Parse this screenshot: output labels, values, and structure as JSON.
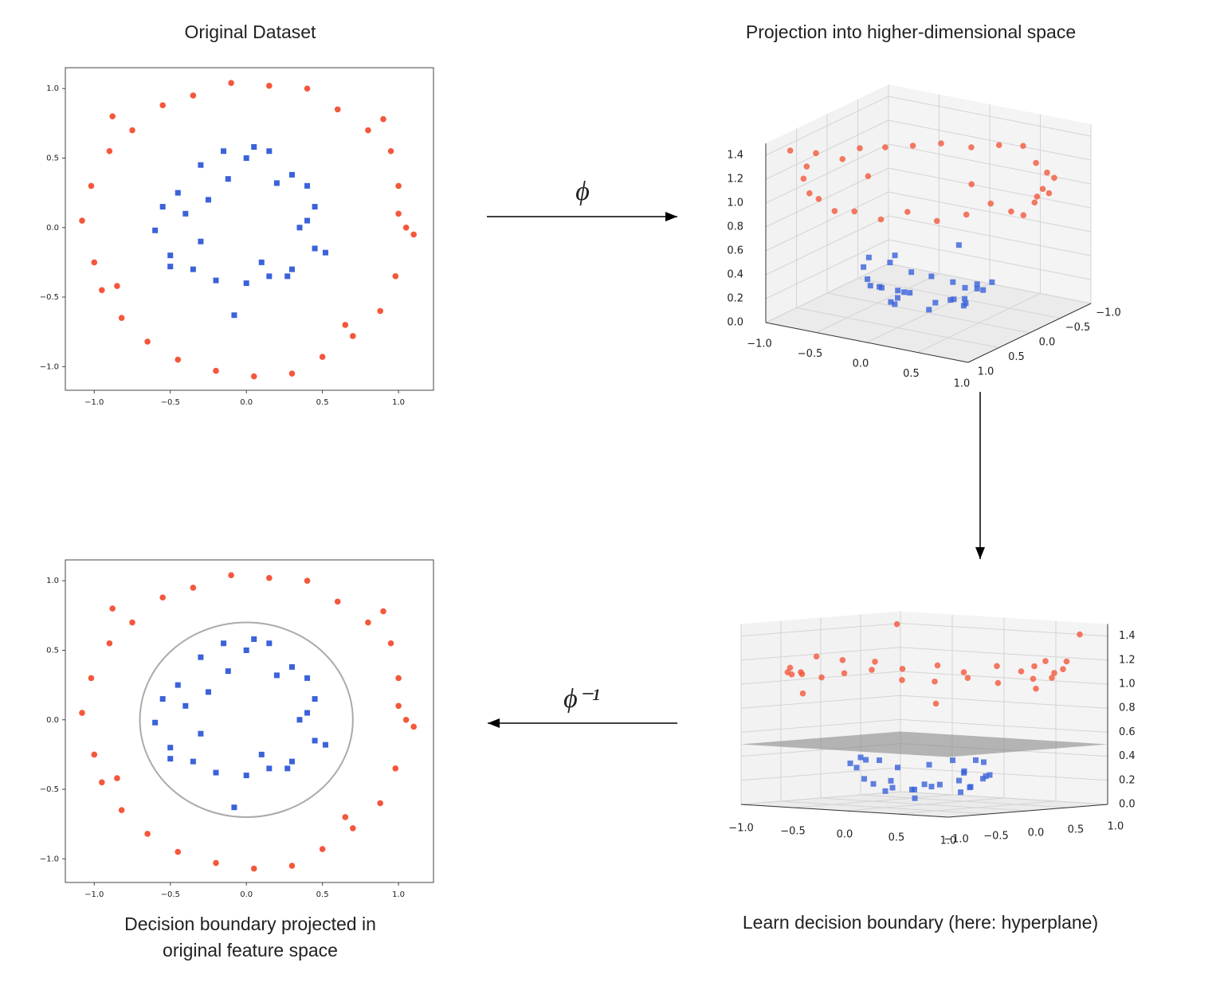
{
  "annotations": [
    "ϕ",
    "ϕ⁻¹"
  ],
  "chart_data": [
    {
      "type": "scatter",
      "title": "Original Dataset",
      "xlim": [
        -1.19,
        1.23
      ],
      "ylim": [
        -1.17,
        1.15
      ],
      "xticks": [
        {
          "value": -1,
          "label": "−1.0"
        },
        {
          "value": -0.5,
          "label": "−0.5"
        },
        {
          "value": 0,
          "label": "0.0"
        },
        {
          "value": 0.5,
          "label": "0.5"
        },
        {
          "value": 1,
          "label": "1.0"
        }
      ],
      "yticks": [
        {
          "value": -1,
          "label": "−1.0"
        },
        {
          "value": -0.5,
          "label": "−0.5"
        },
        {
          "value": 0,
          "label": "0.0"
        },
        {
          "value": 0.5,
          "label": "0.5"
        },
        {
          "value": 1,
          "label": "1.0"
        }
      ],
      "series": [
        {
          "color": "#f4573c",
          "marker": "circle",
          "x": [
            1.05,
            1.0,
            0.95,
            0.8,
            0.6,
            0.4,
            0.15,
            -0.1,
            -0.35,
            -0.55,
            -0.75,
            -0.9,
            -1.02,
            -1.08,
            -1.0,
            -0.95,
            -0.82,
            -0.65,
            -0.45,
            -0.2,
            0.05,
            0.3,
            0.5,
            0.7,
            0.88,
            0.98,
            1.1,
            1.0,
            -0.88,
            0.65,
            -0.85,
            0.9
          ],
          "values": [
            0.0,
            0.3,
            0.55,
            0.7,
            0.85,
            1.0,
            1.02,
            1.04,
            0.95,
            0.88,
            0.7,
            0.55,
            0.3,
            0.05,
            -0.25,
            -0.45,
            -0.65,
            -0.82,
            -0.95,
            -1.03,
            -1.07,
            -1.05,
            -0.93,
            -0.78,
            -0.6,
            -0.35,
            -0.05,
            0.1,
            0.8,
            -0.7,
            -0.42,
            0.78
          ]
        },
        {
          "color": "#3a62d9",
          "marker": "square",
          "x": [
            0.45,
            0.4,
            0.3,
            0.15,
            0.0,
            -0.15,
            -0.3,
            -0.45,
            -0.55,
            -0.6,
            -0.5,
            -0.35,
            -0.2,
            0.0,
            0.15,
            0.3,
            0.45,
            0.52,
            0.4,
            -0.08,
            -0.4,
            0.2,
            0.35,
            -0.25,
            0.1,
            -0.3,
            0.27,
            -0.12,
            0.05,
            -0.5
          ],
          "values": [
            0.15,
            0.3,
            0.38,
            0.55,
            0.5,
            0.55,
            0.45,
            0.25,
            0.15,
            -0.02,
            -0.2,
            -0.3,
            -0.38,
            -0.4,
            -0.35,
            -0.3,
            -0.15,
            -0.18,
            0.05,
            -0.63,
            0.1,
            0.32,
            0.0,
            0.2,
            -0.25,
            -0.1,
            -0.35,
            0.35,
            0.58,
            -0.28
          ]
        }
      ]
    },
    {
      "type": "scatter3d",
      "title": "Projection into higher-dimensional space",
      "xlim": [
        -1,
        1
      ],
      "ylim": [
        -1,
        1
      ],
      "zlim": [
        0,
        1.5
      ],
      "xticks": [
        {
          "value": -1,
          "label": "−1.0"
        },
        {
          "value": -0.5,
          "label": "−0.5"
        },
        {
          "value": 0,
          "label": "0.0"
        },
        {
          "value": 0.5,
          "label": "0.5"
        },
        {
          "value": 1,
          "label": "1.0"
        }
      ],
      "yticks": [
        {
          "value": -1,
          "label": "−1.0"
        },
        {
          "value": -0.5,
          "label": "−0.5"
        },
        {
          "value": 0,
          "label": "0.0"
        },
        {
          "value": 0.5,
          "label": "0.5"
        },
        {
          "value": 1,
          "label": "1.0"
        }
      ],
      "zticks": [
        {
          "value": 0,
          "label": "0.0"
        },
        {
          "value": 0.2,
          "label": "0.2"
        },
        {
          "value": 0.4,
          "label": "0.4"
        },
        {
          "value": 0.6,
          "label": "0.6"
        },
        {
          "value": 0.8,
          "label": "0.8"
        },
        {
          "value": 1,
          "label": "1.0"
        },
        {
          "value": 1.2,
          "label": "1.2"
        },
        {
          "value": 1.4,
          "label": "1.4"
        }
      ],
      "series": [
        {
          "color": "#f4573c",
          "marker": "circle",
          "x": [
            1.05,
            1.0,
            0.95,
            0.8,
            0.6,
            0.4,
            0.15,
            -0.1,
            -0.35,
            -0.55,
            -0.75,
            -0.9,
            -1.02,
            -1.08,
            -1.0,
            -0.95,
            -0.82,
            -0.65,
            -0.45,
            -0.2,
            0.05,
            0.3,
            0.5,
            0.7,
            0.88,
            0.98,
            1.1,
            1.0,
            -0.88,
            0.65,
            -0.85,
            0.9
          ],
          "y": [
            0.0,
            0.3,
            0.55,
            0.7,
            0.85,
            1.0,
            1.02,
            1.04,
            0.95,
            0.88,
            0.7,
            0.55,
            0.3,
            0.05,
            -0.25,
            -0.45,
            -0.65,
            -0.82,
            -0.95,
            -1.03,
            -1.07,
            -1.05,
            -0.93,
            -0.78,
            -0.6,
            -0.35,
            -0.05,
            0.1,
            0.8,
            -0.7,
            -0.42,
            0.78
          ],
          "z": [
            1.1,
            1.09,
            1.21,
            1.13,
            1.08,
            1.16,
            1.06,
            1.09,
            1.03,
            1.08,
            1.05,
            1.11,
            1.13,
            1.17,
            1.06,
            1.11,
            1.09,
            1.09,
            1.11,
            1.1,
            1.15,
            1.19,
            1.11,
            1.1,
            1.13,
            1.08,
            1.21,
            1.01,
            1.41,
            0.91,
            0.9,
            1.42
          ]
        },
        {
          "color": "#3a62d9",
          "marker": "square",
          "x": [
            0.45,
            0.4,
            0.3,
            0.15,
            0.0,
            -0.15,
            -0.3,
            -0.45,
            -0.55,
            -0.6,
            -0.5,
            -0.35,
            -0.2,
            0.0,
            0.15,
            0.3,
            0.45,
            0.52,
            0.4,
            -0.08,
            -0.4,
            0.2,
            0.35,
            -0.25,
            0.1,
            -0.3,
            0.27,
            -0.12,
            0.05,
            -0.5
          ],
          "y": [
            0.15,
            0.3,
            0.38,
            0.55,
            0.5,
            0.55,
            0.45,
            0.25,
            0.15,
            -0.02,
            -0.2,
            -0.3,
            -0.38,
            -0.4,
            -0.35,
            -0.3,
            -0.15,
            -0.18,
            0.05,
            -0.63,
            0.1,
            0.32,
            0.0,
            0.2,
            -0.25,
            -0.1,
            -0.35,
            0.35,
            0.58,
            -0.28
          ],
          "z": [
            0.23,
            0.25,
            0.23,
            0.33,
            0.25,
            0.33,
            0.29,
            0.27,
            0.33,
            0.36,
            0.29,
            0.21,
            0.18,
            0.16,
            0.15,
            0.18,
            0.23,
            0.3,
            0.16,
            0.4,
            0.17,
            0.14,
            0.12,
            0.1,
            0.07,
            0.1,
            0.2,
            0.14,
            0.34,
            0.33
          ]
        }
      ]
    },
    {
      "type": "scatter3d",
      "title": "Learn decision boundary (here: hyperplane)",
      "plane_z": 0.5,
      "xlim": [
        -1,
        1
      ],
      "ylim": [
        -1,
        1
      ],
      "zlim": [
        0,
        1.5
      ],
      "xticks": [
        {
          "value": -1,
          "label": "−1.0"
        },
        {
          "value": -0.5,
          "label": "−0.5"
        },
        {
          "value": 0,
          "label": "0.0"
        },
        {
          "value": 0.5,
          "label": "0.5"
        },
        {
          "value": 1,
          "label": "1.0"
        }
      ],
      "yticks": [
        {
          "value": -1,
          "label": "−1.0"
        },
        {
          "value": -0.5,
          "label": "−0.5"
        },
        {
          "value": 0,
          "label": "0.0"
        },
        {
          "value": 0.5,
          "label": "0.5"
        },
        {
          "value": 1,
          "label": "1.0"
        }
      ],
      "zticks": [
        {
          "value": 0,
          "label": "0.0"
        },
        {
          "value": 0.2,
          "label": "0.2"
        },
        {
          "value": 0.4,
          "label": "0.4"
        },
        {
          "value": 0.6,
          "label": "0.6"
        },
        {
          "value": 0.8,
          "label": "0.8"
        },
        {
          "value": 1,
          "label": "1.0"
        },
        {
          "value": 1.2,
          "label": "1.2"
        },
        {
          "value": 1.4,
          "label": "1.4"
        }
      ],
      "series": [
        {
          "color": "#f4573c",
          "marker": "circle",
          "x": [
            1.05,
            1.0,
            0.95,
            0.8,
            0.6,
            0.4,
            0.15,
            -0.1,
            -0.35,
            -0.55,
            -0.75,
            -0.9,
            -1.02,
            -1.08,
            -1.0,
            -0.95,
            -0.82,
            -0.65,
            -0.45,
            -0.2,
            0.05,
            0.3,
            0.5,
            0.7,
            0.88,
            0.98,
            1.1,
            1.0,
            -0.88,
            0.65,
            -0.85,
            0.9
          ],
          "y": [
            0.0,
            0.3,
            0.55,
            0.7,
            0.85,
            1.0,
            1.02,
            1.04,
            0.95,
            0.88,
            0.7,
            0.55,
            0.3,
            0.05,
            -0.25,
            -0.45,
            -0.65,
            -0.82,
            -0.95,
            -1.03,
            -1.07,
            -1.05,
            -0.93,
            -0.78,
            -0.6,
            -0.35,
            -0.05,
            0.1,
            0.8,
            -0.7,
            -0.42,
            0.78
          ],
          "z": [
            1.1,
            1.09,
            1.21,
            1.13,
            1.08,
            1.16,
            1.06,
            1.09,
            1.03,
            1.08,
            1.05,
            1.11,
            1.13,
            1.17,
            1.06,
            1.11,
            1.09,
            1.09,
            1.11,
            1.1,
            1.15,
            1.19,
            1.11,
            1.1,
            1.13,
            1.08,
            1.21,
            1.01,
            1.41,
            0.91,
            0.9,
            1.42
          ]
        },
        {
          "color": "#3a62d9",
          "marker": "square",
          "x": [
            0.45,
            0.4,
            0.3,
            0.15,
            0.0,
            -0.15,
            -0.3,
            -0.45,
            -0.55,
            -0.6,
            -0.5,
            -0.35,
            -0.2,
            0.0,
            0.15,
            0.3,
            0.45,
            0.52,
            0.4,
            -0.08,
            -0.4,
            0.2,
            0.35,
            -0.25,
            0.1,
            -0.3,
            0.27,
            -0.12,
            0.05,
            -0.5
          ],
          "y": [
            0.15,
            0.3,
            0.38,
            0.55,
            0.5,
            0.55,
            0.45,
            0.25,
            0.15,
            -0.02,
            -0.2,
            -0.3,
            -0.38,
            -0.4,
            -0.35,
            -0.3,
            -0.15,
            -0.18,
            0.05,
            -0.63,
            0.1,
            0.32,
            0.0,
            0.2,
            -0.25,
            -0.1,
            -0.35,
            0.35,
            0.58,
            -0.28
          ],
          "z": [
            0.23,
            0.25,
            0.23,
            0.33,
            0.25,
            0.33,
            0.29,
            0.27,
            0.33,
            0.36,
            0.29,
            0.21,
            0.18,
            0.16,
            0.15,
            0.18,
            0.23,
            0.3,
            0.16,
            0.4,
            0.17,
            0.14,
            0.12,
            0.1,
            0.07,
            0.1,
            0.2,
            0.14,
            0.34,
            0.33
          ]
        }
      ]
    },
    {
      "type": "scatter",
      "title": [
        "Decision boundary projected in",
        "original feature space"
      ],
      "boundary_radius": 0.7,
      "xlim": [
        -1.19,
        1.23
      ],
      "ylim": [
        -1.17,
        1.15
      ],
      "xticks": [
        {
          "value": -1,
          "label": "−1.0"
        },
        {
          "value": -0.5,
          "label": "−0.5"
        },
        {
          "value": 0,
          "label": "0.0"
        },
        {
          "value": 0.5,
          "label": "0.5"
        },
        {
          "value": 1,
          "label": "1.0"
        }
      ],
      "yticks": [
        {
          "value": -1,
          "label": "−1.0"
        },
        {
          "value": -0.5,
          "label": "−0.5"
        },
        {
          "value": 0,
          "label": "0.0"
        },
        {
          "value": 0.5,
          "label": "0.5"
        },
        {
          "value": 1,
          "label": "1.0"
        }
      ],
      "series": [
        {
          "color": "#f4573c",
          "marker": "circle",
          "x": [
            1.05,
            1.0,
            0.95,
            0.8,
            0.6,
            0.4,
            0.15,
            -0.1,
            -0.35,
            -0.55,
            -0.75,
            -0.9,
            -1.02,
            -1.08,
            -1.0,
            -0.95,
            -0.82,
            -0.65,
            -0.45,
            -0.2,
            0.05,
            0.3,
            0.5,
            0.7,
            0.88,
            0.98,
            1.1,
            1.0,
            -0.88,
            0.65,
            -0.85,
            0.9
          ],
          "values": [
            0.0,
            0.3,
            0.55,
            0.7,
            0.85,
            1.0,
            1.02,
            1.04,
            0.95,
            0.88,
            0.7,
            0.55,
            0.3,
            0.05,
            -0.25,
            -0.45,
            -0.65,
            -0.82,
            -0.95,
            -1.03,
            -1.07,
            -1.05,
            -0.93,
            -0.78,
            -0.6,
            -0.35,
            -0.05,
            0.1,
            0.8,
            -0.7,
            -0.42,
            0.78
          ]
        },
        {
          "color": "#3a62d9",
          "marker": "square",
          "x": [
            0.45,
            0.4,
            0.3,
            0.15,
            0.0,
            -0.15,
            -0.3,
            -0.45,
            -0.55,
            -0.6,
            -0.5,
            -0.35,
            -0.2,
            0.0,
            0.15,
            0.3,
            0.45,
            0.52,
            0.4,
            -0.08,
            -0.4,
            0.2,
            0.35,
            -0.25,
            0.1,
            -0.3,
            0.27,
            -0.12,
            0.05,
            -0.5
          ],
          "values": [
            0.15,
            0.3,
            0.38,
            0.55,
            0.5,
            0.55,
            0.45,
            0.25,
            0.15,
            -0.02,
            -0.2,
            -0.3,
            -0.38,
            -0.4,
            -0.35,
            -0.3,
            -0.15,
            -0.18,
            0.05,
            -0.63,
            0.1,
            0.32,
            0.0,
            0.2,
            -0.25,
            -0.1,
            -0.35,
            0.35,
            0.58,
            -0.28
          ]
        }
      ]
    }
  ]
}
